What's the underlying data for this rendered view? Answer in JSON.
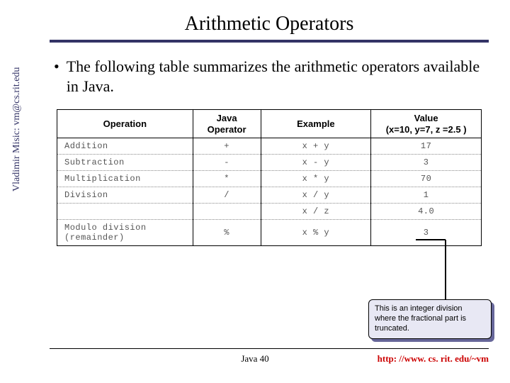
{
  "title": "Arithmetic Operators",
  "bullet": "The following table summarizes the arithmetic operators available in Java.",
  "side_label": "Vladimir Misic: vm@cs.rit.edu",
  "table": {
    "headers": {
      "c0": "Operation",
      "c1": "Java\nOperator",
      "c2": "Example",
      "c3": "Value\n(x=10, y=7, z =2.5 )"
    },
    "rows": [
      {
        "op": "Addition",
        "sym": "+",
        "ex": "x  +  y",
        "val": "17"
      },
      {
        "op": "Subtraction",
        "sym": "-",
        "ex": "x  -  y",
        "val": "3"
      },
      {
        "op": "Multiplication",
        "sym": "*",
        "ex": "x  *  y",
        "val": "70"
      },
      {
        "op": "Division",
        "sym": "/",
        "ex": "x  /  y",
        "val": "1"
      },
      {
        "op": "",
        "sym": "",
        "ex": "x  /  z",
        "val": "4.0"
      },
      {
        "op": "Modulo division\n(remainder)",
        "sym": "%",
        "ex": "x  %  y",
        "val": "3"
      }
    ]
  },
  "callout": "This is an integer division where the fractional part is truncated.",
  "footer_center": "Java 40",
  "footer_right": "http: //www. cs. rit. edu/~vm"
}
